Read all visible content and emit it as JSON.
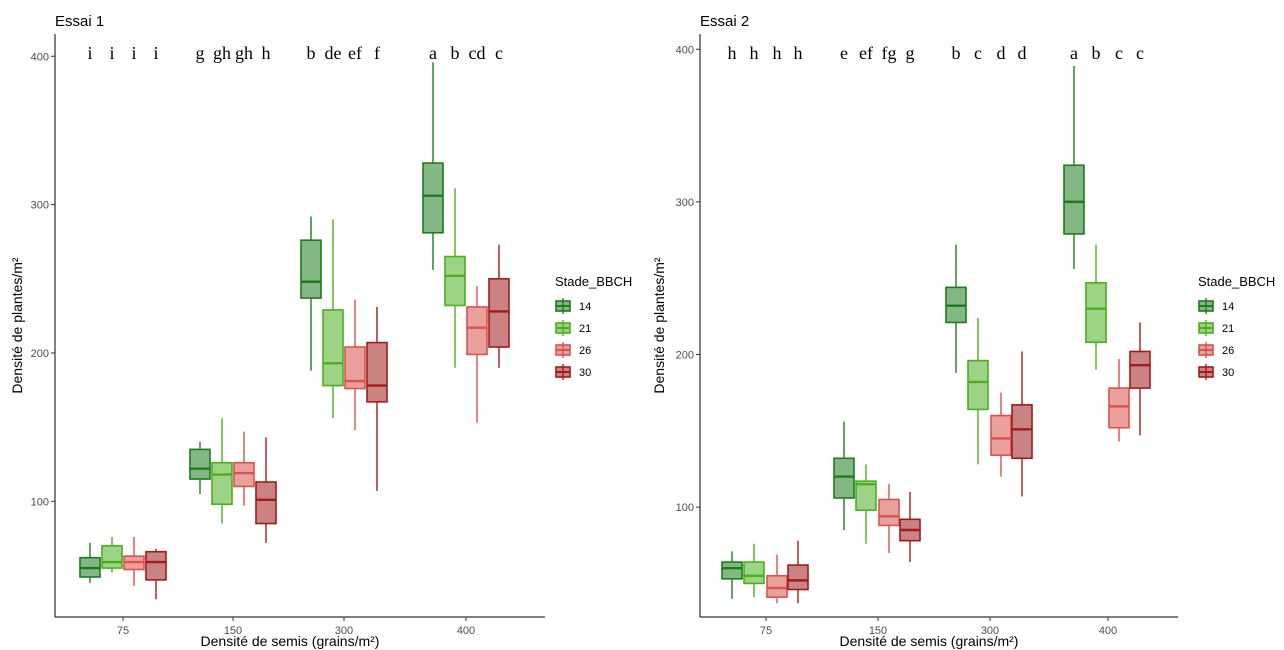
{
  "chart_data": [
    {
      "type": "boxplot",
      "title": "Essai 1",
      "xlabel": "Densité de semis (grains/m²)",
      "ylabel": "Densité de plantes/m²",
      "categories": [
        "75",
        "150",
        "300",
        "400"
      ],
      "ylim": [
        22,
        415
      ],
      "yticks": [
        100,
        200,
        300,
        400
      ],
      "grid": false,
      "legend": {
        "title": "Stade_BBCH",
        "position": "right",
        "entries": [
          "14",
          "21",
          "26",
          "30"
        ]
      },
      "series": [
        {
          "name": "14",
          "color": "#1e7b1e",
          "boxes": [
            {
              "min": 45,
              "q1": 49,
              "median": 55,
              "q3": 62,
              "max": 72
            },
            {
              "min": 105,
              "q1": 115,
              "median": 122,
              "q3": 135,
              "max": 140
            },
            {
              "min": 188,
              "q1": 237,
              "median": 248,
              "q3": 276,
              "max": 292
            },
            {
              "min": 256,
              "q1": 281,
              "median": 306,
              "q3": 328,
              "max": 396
            }
          ]
        },
        {
          "name": "21",
          "color": "#4caf1f",
          "boxes": [
            {
              "min": 52,
              "q1": 55,
              "median": 59,
              "q3": 70,
              "max": 76
            },
            {
              "min": 85,
              "q1": 98,
              "median": 118,
              "q3": 126,
              "max": 156
            },
            {
              "min": 156,
              "q1": 178,
              "median": 193,
              "q3": 229,
              "max": 290
            },
            {
              "min": 190,
              "q1": 232,
              "median": 252,
              "q3": 265,
              "max": 311
            }
          ]
        },
        {
          "name": "26",
          "color": "#d9534f",
          "boxes": [
            {
              "min": 43,
              "q1": 54,
              "median": 59,
              "q3": 63,
              "max": 76
            },
            {
              "min": 97,
              "q1": 110,
              "median": 119,
              "q3": 126,
              "max": 147
            },
            {
              "min": 148,
              "q1": 176,
              "median": 181,
              "q3": 204,
              "max": 236
            },
            {
              "min": 153,
              "q1": 199,
              "median": 217,
              "q3": 231,
              "max": 245
            }
          ]
        },
        {
          "name": "30",
          "color": "#a01c1c",
          "boxes": [
            {
              "min": 34,
              "q1": 47,
              "median": 59,
              "q3": 66,
              "max": 68
            },
            {
              "min": 72,
              "q1": 85,
              "median": 101,
              "q3": 113,
              "max": 143
            },
            {
              "min": 107,
              "q1": 167,
              "median": 178,
              "q3": 207,
              "max": 231
            },
            {
              "min": 190,
              "q1": 204,
              "median": 228,
              "q3": 250,
              "max": 273
            }
          ]
        }
      ],
      "annotations": [
        [
          "i",
          "i",
          "i",
          "i"
        ],
        [
          "g",
          "gh",
          "gh",
          "h"
        ],
        [
          "b",
          "de",
          "ef",
          "f"
        ],
        [
          "a",
          "b",
          "cd",
          "c"
        ]
      ]
    },
    {
      "type": "boxplot",
      "title": "Essai 2",
      "xlabel": "Densité de semis (grains/m²)",
      "ylabel": "Densité de plantes/m²",
      "categories": [
        "75",
        "150",
        "300",
        "400"
      ],
      "ylim": [
        28,
        410
      ],
      "yticks": [
        100,
        200,
        300,
        400
      ],
      "grid": false,
      "legend": {
        "title": "Stade_BBCH",
        "position": "right",
        "entries": [
          "14",
          "21",
          "26",
          "30"
        ]
      },
      "series": [
        {
          "name": "14",
          "color": "#1e7b1e",
          "boxes": [
            {
              "min": 40,
              "q1": 53,
              "median": 60,
              "q3": 64,
              "max": 71
            },
            {
              "min": 85,
              "q1": 106,
              "median": 120,
              "q3": 132,
              "max": 156
            },
            {
              "min": 188,
              "q1": 221,
              "median": 232,
              "q3": 244,
              "max": 272
            },
            {
              "min": 256,
              "q1": 279,
              "median": 300,
              "q3": 324,
              "max": 389
            }
          ]
        },
        {
          "name": "21",
          "color": "#4caf1f",
          "boxes": [
            {
              "min": 41,
              "q1": 50,
              "median": 55,
              "q3": 64,
              "max": 76
            },
            {
              "min": 76,
              "q1": 98,
              "median": 115,
              "q3": 117,
              "max": 128
            },
            {
              "min": 128,
              "q1": 164,
              "median": 182,
              "q3": 196,
              "max": 224
            },
            {
              "min": 190,
              "q1": 208,
              "median": 230,
              "q3": 247,
              "max": 272
            }
          ]
        },
        {
          "name": "26",
          "color": "#d9534f",
          "boxes": [
            {
              "min": 37,
              "q1": 41,
              "median": 47,
              "q3": 55,
              "max": 69
            },
            {
              "min": 70,
              "q1": 88,
              "median": 94,
              "q3": 105,
              "max": 115
            },
            {
              "min": 120,
              "q1": 134,
              "median": 145,
              "q3": 160,
              "max": 175
            },
            {
              "min": 143,
              "q1": 152,
              "median": 166,
              "q3": 178,
              "max": 197
            }
          ]
        },
        {
          "name": "30",
          "color": "#a01c1c",
          "boxes": [
            {
              "min": 37,
              "q1": 46,
              "median": 52,
              "q3": 62,
              "max": 78
            },
            {
              "min": 64,
              "q1": 78,
              "median": 85,
              "q3": 92,
              "max": 110
            },
            {
              "min": 107,
              "q1": 132,
              "median": 151,
              "q3": 167,
              "max": 202
            },
            {
              "min": 147,
              "q1": 178,
              "median": 193,
              "q3": 202,
              "max": 221
            }
          ]
        }
      ],
      "annotations": [
        [
          "h",
          "h",
          "h",
          "h"
        ],
        [
          "e",
          "ef",
          "fg",
          "g"
        ],
        [
          "b",
          "c",
          "d",
          "d"
        ],
        [
          "a",
          "b",
          "c",
          "c"
        ]
      ]
    }
  ]
}
